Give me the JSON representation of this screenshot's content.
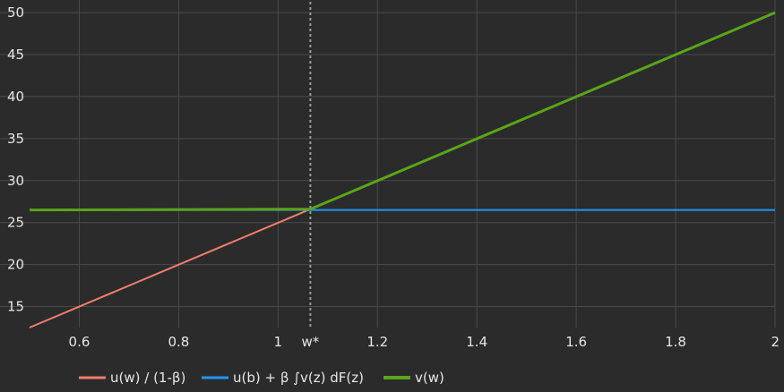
{
  "colors": {
    "background": "#2b2b2b",
    "grid": "#4a4a4a",
    "text": "#e6e6e6",
    "vline": "#9a9a9a"
  },
  "chart_data": {
    "type": "line",
    "xlim": [
      0.5,
      2.0
    ],
    "ylim": [
      12.5,
      51.5
    ],
    "xticks": [
      {
        "value": 0.6,
        "label": "0.6"
      },
      {
        "value": 0.8,
        "label": "0.8"
      },
      {
        "value": 1.0,
        "label": "1"
      },
      {
        "value": 1.2,
        "label": "1.2"
      },
      {
        "value": 1.4,
        "label": "1.4"
      },
      {
        "value": 1.6,
        "label": "1.6"
      },
      {
        "value": 1.8,
        "label": "1.8"
      },
      {
        "value": 2.0,
        "label": "2"
      }
    ],
    "yticks": [
      {
        "value": 15,
        "label": "15"
      },
      {
        "value": 20,
        "label": "20"
      },
      {
        "value": 25,
        "label": "25"
      },
      {
        "value": 30,
        "label": "30"
      },
      {
        "value": 35,
        "label": "35"
      },
      {
        "value": 40,
        "label": "40"
      },
      {
        "value": 45,
        "label": "45"
      },
      {
        "value": 50,
        "label": "50"
      }
    ],
    "grid": true,
    "legend_position": "bottom",
    "annotations": [
      {
        "type": "vline",
        "x": 1.065,
        "label": "w*",
        "style": "dotted"
      }
    ],
    "series": [
      {
        "name": "u(w) / (1-β)",
        "color": "#f07e6e",
        "width": 2,
        "x": [
          0.5,
          1.065
        ],
        "y": [
          12.5,
          26.6
        ]
      },
      {
        "name": "u(b) + β ∫v(z) dF(z)",
        "color": "#2196f3",
        "width": 2,
        "x": [
          0.5,
          2.0
        ],
        "y": [
          26.5,
          26.5
        ]
      },
      {
        "name": "v(w)",
        "color": "#5aa51a",
        "width": 3,
        "x": [
          0.5,
          1.065,
          2.0
        ],
        "y": [
          26.5,
          26.6,
          50.0
        ]
      }
    ]
  }
}
